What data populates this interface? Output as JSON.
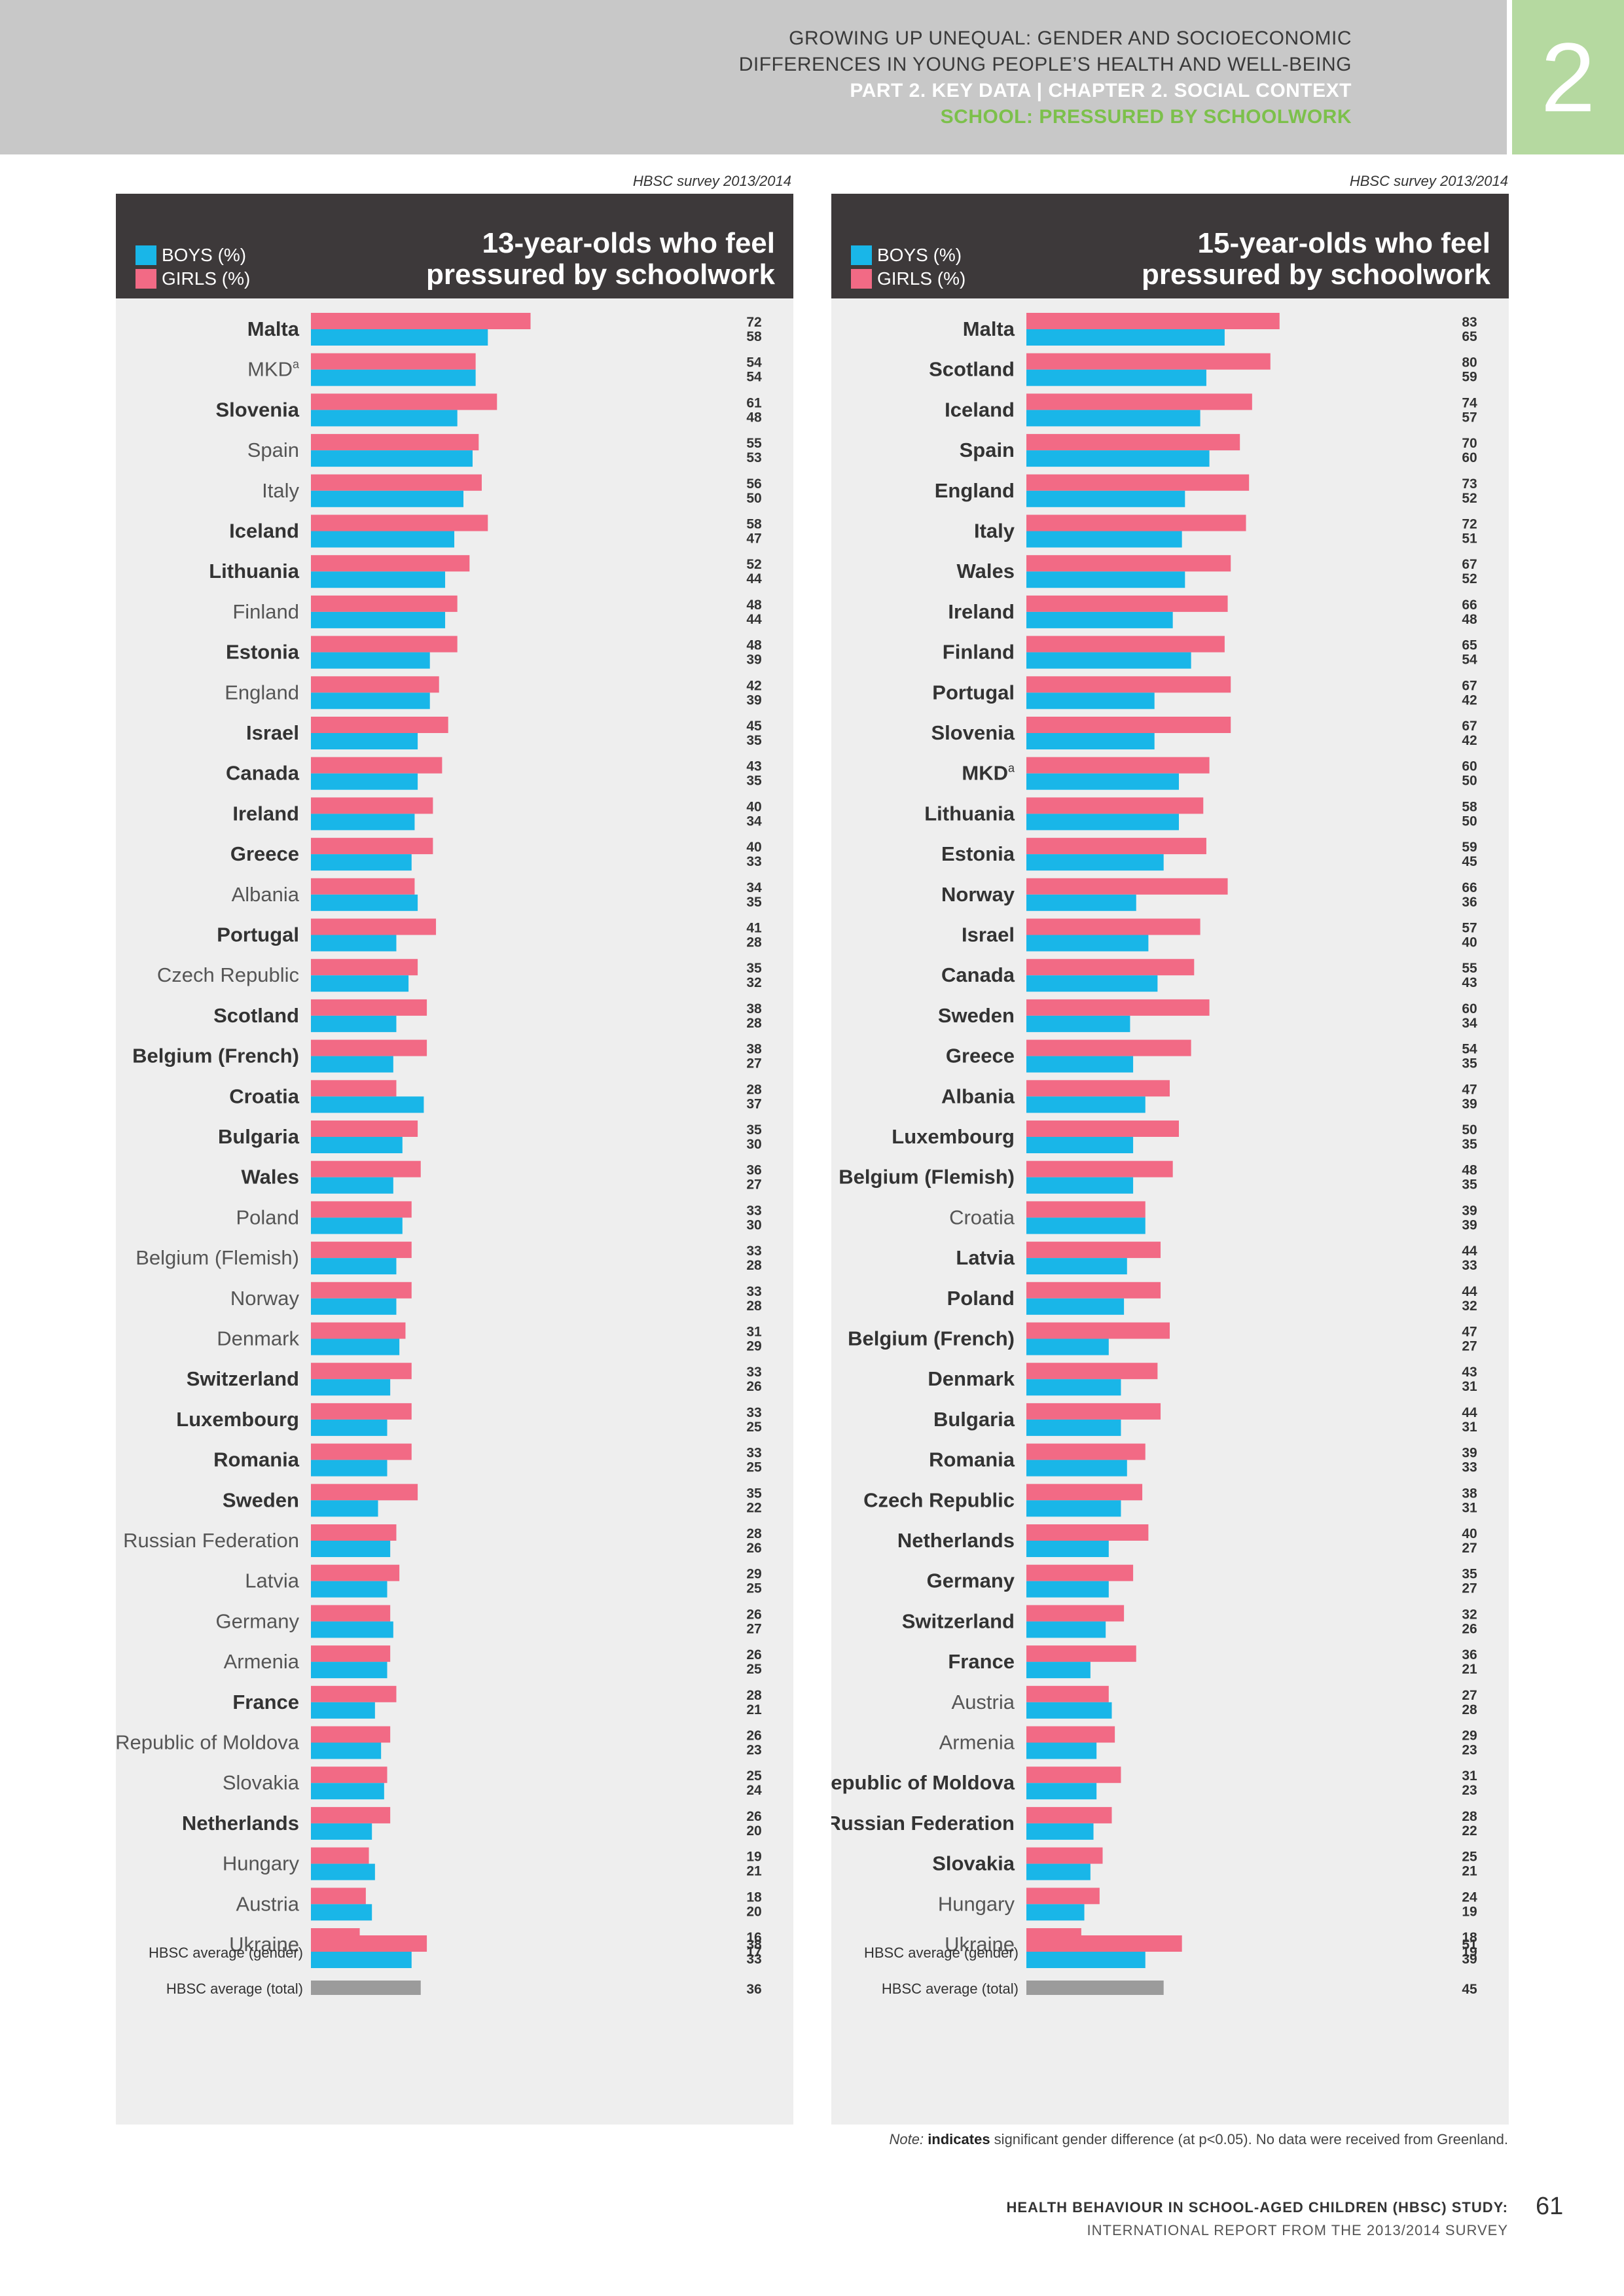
{
  "header": {
    "line1": "GROWING UP UNEQUAL: GENDER AND SOCIOECONOMIC",
    "line2": "DIFFERENCES IN YOUNG PEOPLE’S HEALTH AND WELL-BEING",
    "line3": "PART 2. KEY DATA | CHAPTER 2. SOCIAL CONTEXT",
    "line4": "SCHOOL: PRESSURED BY SCHOOLWORK",
    "chapter_number": "2"
  },
  "colors": {
    "boys": "#19b6e8",
    "girls": "#f26a85",
    "total": "#9b9b9b",
    "chart_bg": "#eeeeee",
    "header_dark": "#3d393a",
    "tab_green": "#b5d9a0",
    "accent_green": "#7cc04b"
  },
  "legend": {
    "boys": "BOYS (%)",
    "girls": "GIRLS (%)"
  },
  "note": {
    "prefix": "Note:",
    "bold": "indicates",
    "rest": " significant gender difference (at p<0.05). No data were received from Greenland."
  },
  "footer": {
    "line1": "HEALTH BEHAVIOUR IN SCHOOL-AGED CHILDREN (HBSC) STUDY:",
    "line2": "INTERNATIONAL REPORT FROM THE 2013/2014 SURVEY",
    "page_number": "61"
  },
  "chart_data": [
    {
      "type": "bar",
      "survey_label": "HBSC survey 2013/2014",
      "title": "13-year-olds who feel pressured by schoolwork",
      "title_line1": "13-year-olds who feel",
      "title_line2": "pressured by schoolwork",
      "series": [
        {
          "name": "GIRLS (%)",
          "color": "#f26a85"
        },
        {
          "name": "BOYS (%)",
          "color": "#19b6e8"
        }
      ],
      "categories": [
        {
          "label": "Malta",
          "girls": 72,
          "boys": 58,
          "significant": true
        },
        {
          "label": "MKD",
          "sup": "a",
          "girls": 54,
          "boys": 54,
          "significant": false
        },
        {
          "label": "Slovenia",
          "girls": 61,
          "boys": 48,
          "significant": true
        },
        {
          "label": "Spain",
          "girls": 55,
          "boys": 53,
          "significant": false
        },
        {
          "label": "Italy",
          "girls": 56,
          "boys": 50,
          "significant": false
        },
        {
          "label": "Iceland",
          "girls": 58,
          "boys": 47,
          "significant": true
        },
        {
          "label": "Lithuania",
          "girls": 52,
          "boys": 44,
          "significant": true
        },
        {
          "label": "Finland",
          "girls": 48,
          "boys": 44,
          "significant": false
        },
        {
          "label": "Estonia",
          "girls": 48,
          "boys": 39,
          "significant": true
        },
        {
          "label": "England",
          "girls": 42,
          "boys": 39,
          "significant": false
        },
        {
          "label": "Israel",
          "girls": 45,
          "boys": 35,
          "significant": true
        },
        {
          "label": "Canada",
          "girls": 43,
          "boys": 35,
          "significant": true
        },
        {
          "label": "Ireland",
          "girls": 40,
          "boys": 34,
          "significant": true
        },
        {
          "label": "Greece",
          "girls": 40,
          "boys": 33,
          "significant": true
        },
        {
          "label": "Albania",
          "girls": 34,
          "boys": 35,
          "significant": false
        },
        {
          "label": "Portugal",
          "girls": 41,
          "boys": 28,
          "significant": true
        },
        {
          "label": "Czech Republic",
          "girls": 35,
          "boys": 32,
          "significant": false
        },
        {
          "label": "Scotland",
          "girls": 38,
          "boys": 28,
          "significant": true
        },
        {
          "label": "Belgium (French)",
          "girls": 38,
          "boys": 27,
          "significant": true
        },
        {
          "label": "Croatia",
          "girls": 28,
          "boys": 37,
          "significant": true
        },
        {
          "label": "Bulgaria",
          "girls": 35,
          "boys": 30,
          "significant": true
        },
        {
          "label": "Wales",
          "girls": 36,
          "boys": 27,
          "significant": true
        },
        {
          "label": "Poland",
          "girls": 33,
          "boys": 30,
          "significant": false
        },
        {
          "label": "Belgium (Flemish)",
          "girls": 33,
          "boys": 28,
          "significant": false
        },
        {
          "label": "Norway",
          "girls": 33,
          "boys": 28,
          "significant": false
        },
        {
          "label": "Denmark",
          "girls": 31,
          "boys": 29,
          "significant": false
        },
        {
          "label": "Switzerland",
          "girls": 33,
          "boys": 26,
          "significant": true
        },
        {
          "label": "Luxembourg",
          "girls": 33,
          "boys": 25,
          "significant": true
        },
        {
          "label": "Romania",
          "girls": 33,
          "boys": 25,
          "significant": true
        },
        {
          "label": "Sweden",
          "girls": 35,
          "boys": 22,
          "significant": true
        },
        {
          "label": "Russian Federation",
          "girls": 28,
          "boys": 26,
          "significant": false
        },
        {
          "label": "Latvia",
          "girls": 29,
          "boys": 25,
          "significant": false
        },
        {
          "label": "Germany",
          "girls": 26,
          "boys": 27,
          "significant": false
        },
        {
          "label": "Armenia",
          "girls": 26,
          "boys": 25,
          "significant": false
        },
        {
          "label": "France",
          "girls": 28,
          "boys": 21,
          "significant": true
        },
        {
          "label": "Republic of Moldova",
          "girls": 26,
          "boys": 23,
          "significant": false
        },
        {
          "label": "Slovakia",
          "girls": 25,
          "boys": 24,
          "significant": false
        },
        {
          "label": "Netherlands",
          "girls": 26,
          "boys": 20,
          "significant": true
        },
        {
          "label": "Hungary",
          "girls": 19,
          "boys": 21,
          "significant": false
        },
        {
          "label": "Austria",
          "girls": 18,
          "boys": 20,
          "significant": false
        },
        {
          "label": "Ukraine",
          "girls": 16,
          "boys": 17,
          "significant": false
        }
      ],
      "average_gender": {
        "label": "HBSC average (gender)",
        "girls": 38,
        "boys": 33
      },
      "average_total": {
        "label": "HBSC average (total)",
        "value": 36
      }
    },
    {
      "type": "bar",
      "survey_label": "HBSC survey 2013/2014",
      "title": "15-year-olds who feel pressured by schoolwork",
      "title_line1": "15-year-olds who feel",
      "title_line2": "pressured by schoolwork",
      "series": [
        {
          "name": "GIRLS (%)",
          "color": "#f26a85"
        },
        {
          "name": "BOYS (%)",
          "color": "#19b6e8"
        }
      ],
      "categories": [
        {
          "label": "Malta",
          "girls": 83,
          "boys": 65,
          "significant": true
        },
        {
          "label": "Scotland",
          "girls": 80,
          "boys": 59,
          "significant": true
        },
        {
          "label": "Iceland",
          "girls": 74,
          "boys": 57,
          "significant": true
        },
        {
          "label": "Spain",
          "girls": 70,
          "boys": 60,
          "significant": true
        },
        {
          "label": "England",
          "girls": 73,
          "boys": 52,
          "significant": true
        },
        {
          "label": "Italy",
          "girls": 72,
          "boys": 51,
          "significant": true
        },
        {
          "label": "Wales",
          "girls": 67,
          "boys": 52,
          "significant": true
        },
        {
          "label": "Ireland",
          "girls": 66,
          "boys": 48,
          "significant": true
        },
        {
          "label": "Finland",
          "girls": 65,
          "boys": 54,
          "significant": true
        },
        {
          "label": "Portugal",
          "girls": 67,
          "boys": 42,
          "significant": true
        },
        {
          "label": "Slovenia",
          "girls": 67,
          "boys": 42,
          "significant": true
        },
        {
          "label": "MKD",
          "sup": "a",
          "girls": 60,
          "boys": 50,
          "significant": true
        },
        {
          "label": "Lithuania",
          "girls": 58,
          "boys": 50,
          "significant": true
        },
        {
          "label": "Estonia",
          "girls": 59,
          "boys": 45,
          "significant": true
        },
        {
          "label": "Norway",
          "girls": 66,
          "boys": 36,
          "significant": true
        },
        {
          "label": "Israel",
          "girls": 57,
          "boys": 40,
          "significant": true
        },
        {
          "label": "Canada",
          "girls": 55,
          "boys": 43,
          "significant": true
        },
        {
          "label": "Sweden",
          "girls": 60,
          "boys": 34,
          "significant": true
        },
        {
          "label": "Greece",
          "girls": 54,
          "boys": 35,
          "significant": true
        },
        {
          "label": "Albania",
          "girls": 47,
          "boys": 39,
          "significant": true
        },
        {
          "label": "Luxembourg",
          "girls": 50,
          "boys": 35,
          "significant": true
        },
        {
          "label": "Belgium (Flemish)",
          "girls": 48,
          "boys": 35,
          "significant": true
        },
        {
          "label": "Croatia",
          "girls": 39,
          "boys": 39,
          "significant": false
        },
        {
          "label": "Latvia",
          "girls": 44,
          "boys": 33,
          "significant": true
        },
        {
          "label": "Poland",
          "girls": 44,
          "boys": 32,
          "significant": true
        },
        {
          "label": "Belgium (French)",
          "girls": 47,
          "boys": 27,
          "significant": true
        },
        {
          "label": "Denmark",
          "girls": 43,
          "boys": 31,
          "significant": true
        },
        {
          "label": "Bulgaria",
          "girls": 44,
          "boys": 31,
          "significant": true
        },
        {
          "label": "Romania",
          "girls": 39,
          "boys": 33,
          "significant": true
        },
        {
          "label": "Czech Republic",
          "girls": 38,
          "boys": 31,
          "significant": true
        },
        {
          "label": "Netherlands",
          "girls": 40,
          "boys": 27,
          "significant": true
        },
        {
          "label": "Germany",
          "girls": 35,
          "boys": 27,
          "significant": true
        },
        {
          "label": "Switzerland",
          "girls": 32,
          "boys": 26,
          "significant": true
        },
        {
          "label": "France",
          "girls": 36,
          "boys": 21,
          "significant": true
        },
        {
          "label": "Austria",
          "girls": 27,
          "boys": 28,
          "significant": false
        },
        {
          "label": "Armenia",
          "girls": 29,
          "boys": 23,
          "significant": false
        },
        {
          "label": "Republic of Moldova",
          "girls": 31,
          "boys": 23,
          "significant": true
        },
        {
          "label": "Russian Federation",
          "girls": 28,
          "boys": 22,
          "significant": true
        },
        {
          "label": "Slovakia",
          "girls": 25,
          "boys": 21,
          "significant": true
        },
        {
          "label": "Hungary",
          "girls": 24,
          "boys": 19,
          "significant": false
        },
        {
          "label": "Ukraine",
          "girls": 18,
          "boys": 19,
          "significant": false
        }
      ],
      "average_gender": {
        "label": "HBSC average (gender)",
        "girls": 51,
        "boys": 39
      },
      "average_total": {
        "label": "HBSC average (total)",
        "value": 45
      }
    }
  ]
}
